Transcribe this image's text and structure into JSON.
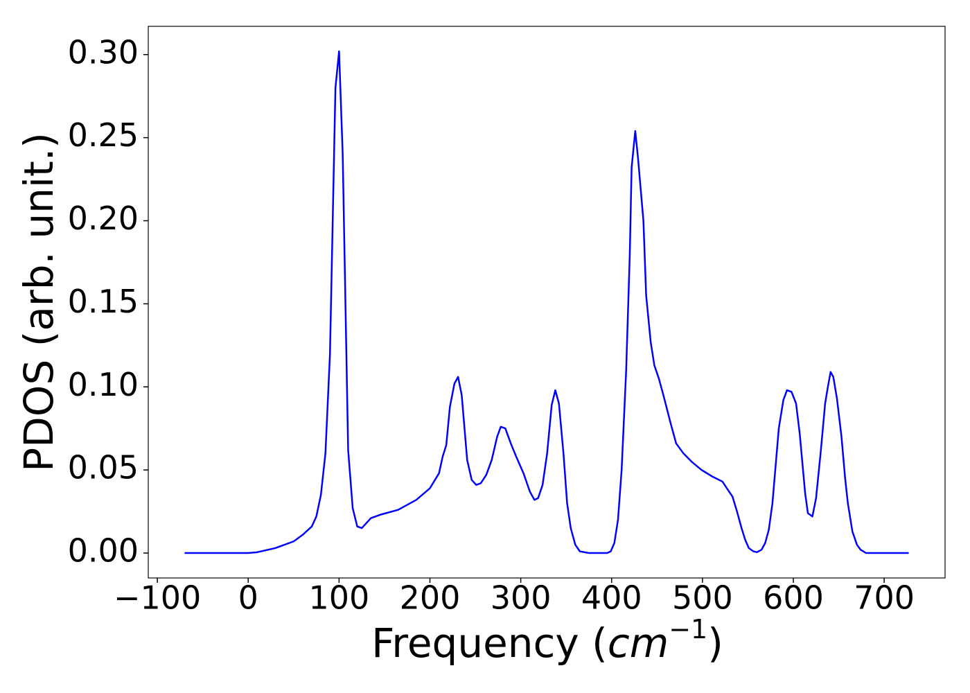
{
  "chart_data": {
    "type": "line",
    "x_label": {
      "text": "Frequency (",
      "unit": "cm",
      "exponent": "−1",
      "close": ")"
    },
    "y_label": "PDOS (arb. unit.)",
    "xlim": [
      -110,
      767
    ],
    "ylim": [
      -0.015,
      0.317
    ],
    "xticks": [
      {
        "value": -100,
        "label": "−100"
      },
      0,
      100,
      200,
      300,
      400,
      500,
      600,
      700
    ],
    "yticks": [
      {
        "value": 0,
        "label": "0.00"
      },
      {
        "value": 0.05,
        "label": "0.05"
      },
      {
        "value": 0.1,
        "label": "0.10"
      },
      {
        "value": 0.15,
        "label": "0.15"
      },
      {
        "value": 0.2,
        "label": "0.20"
      },
      {
        "value": 0.25,
        "label": "0.25"
      },
      {
        "value": 0.3,
        "label": "0.30"
      }
    ],
    "x": [
      -70,
      0,
      10,
      30,
      50,
      60,
      70,
      75,
      80,
      85,
      90,
      96,
      100,
      104,
      110,
      115,
      120,
      125,
      135,
      145,
      165,
      185,
      200,
      210,
      214,
      218,
      222,
      227,
      231,
      235,
      241,
      246,
      251,
      256,
      262,
      268,
      274,
      278,
      283,
      289,
      295,
      303,
      310,
      315,
      319,
      324,
      329,
      334,
      338,
      342,
      347,
      351,
      355,
      360,
      365,
      375,
      395,
      399,
      403,
      407,
      411,
      416,
      420,
      422,
      426,
      429,
      435,
      438,
      443,
      447,
      452,
      457,
      465,
      471,
      479,
      488,
      499,
      511,
      522,
      528,
      533,
      538,
      543,
      547,
      551,
      556,
      560,
      565,
      569,
      573,
      577,
      584,
      589,
      593,
      598,
      603,
      607,
      613,
      616,
      621,
      625,
      630,
      635,
      638,
      641,
      644,
      648,
      653,
      657,
      660,
      665,
      670,
      674,
      680,
      727
    ],
    "series": [
      {
        "color": "#0000ff",
        "values": [
          0,
          0,
          0.0005,
          0.003,
          0.007,
          0.011,
          0.016,
          0.022,
          0.035,
          0.06,
          0.12,
          0.28,
          0.302,
          0.24,
          0.062,
          0.027,
          0.016,
          0.015,
          0.021,
          0.023,
          0.026,
          0.032,
          0.039,
          0.048,
          0.058,
          0.065,
          0.088,
          0.102,
          0.106,
          0.095,
          0.056,
          0.044,
          0.041,
          0.042,
          0.047,
          0.056,
          0.07,
          0.076,
          0.075,
          0.066,
          0.058,
          0.048,
          0.037,
          0.032,
          0.033,
          0.041,
          0.06,
          0.089,
          0.098,
          0.09,
          0.06,
          0.03,
          0.015,
          0.005,
          0.001,
          0,
          0,
          0.001,
          0.006,
          0.02,
          0.05,
          0.11,
          0.18,
          0.232,
          0.254,
          0.238,
          0.2,
          0.155,
          0.127,
          0.113,
          0.105,
          0.095,
          0.078,
          0.066,
          0.06,
          0.055,
          0.05,
          0.046,
          0.043,
          0.038,
          0.034,
          0.025,
          0.015,
          0.008,
          0.003,
          0.001,
          0.0005,
          0.002,
          0.006,
          0.014,
          0.03,
          0.075,
          0.092,
          0.098,
          0.097,
          0.09,
          0.072,
          0.036,
          0.024,
          0.022,
          0.033,
          0.06,
          0.09,
          0.1,
          0.109,
          0.106,
          0.093,
          0.07,
          0.045,
          0.03,
          0.013,
          0.005,
          0.002,
          0,
          0
        ]
      }
    ]
  }
}
